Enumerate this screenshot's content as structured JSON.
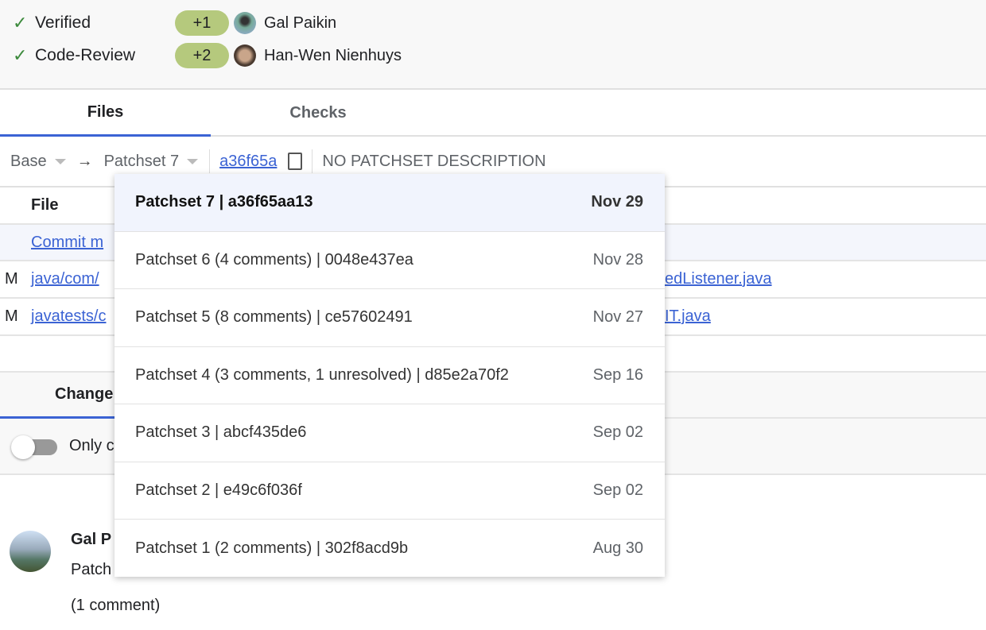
{
  "labels": [
    {
      "name": "Verified",
      "vote": "+1",
      "user": "Gal Paikin"
    },
    {
      "name": "Code-Review",
      "vote": "+2",
      "user": "Han-Wen Nienhuys"
    }
  ],
  "tabs": {
    "files": "Files",
    "checks": "Checks"
  },
  "toolbar": {
    "base": "Base",
    "arrow": "→",
    "patchset": "Patchset 7",
    "commit": "a36f65a",
    "description": "NO PATCHSET DESCRIPTION"
  },
  "files": {
    "header": "File",
    "commit_msg": "Commit m",
    "rows": [
      {
        "status": "M",
        "path_start": "java/com/",
        "path_end": "edListener.java"
      },
      {
        "status": "M",
        "path_start": "javatests/c",
        "path_end": "IT.java"
      }
    ]
  },
  "lower_tab": "Change",
  "toggle_label": "Only c",
  "toggle_on": false,
  "message": {
    "author": "Gal P",
    "text": "Patch",
    "comments": "(1 comment)"
  },
  "dropdown": [
    {
      "label": "Patchset 7 | a36f65aa13",
      "date": "Nov 29",
      "selected": true
    },
    {
      "label": "Patchset 6 (4 comments) | 0048e437ea",
      "date": "Nov 28"
    },
    {
      "label": "Patchset 5 (8 comments) | ce57602491",
      "date": "Nov 27"
    },
    {
      "label": "Patchset 4 (3 comments, 1 unresolved) | d85e2a70f2",
      "date": "Sep 16"
    },
    {
      "label": "Patchset 3 | abcf435de6",
      "date": "Sep 02"
    },
    {
      "label": "Patchset 2 | e49c6f036f",
      "date": "Sep 02"
    },
    {
      "label": "Patchset 1 (2 comments) | 302f8acd9b",
      "date": "Aug 30"
    }
  ],
  "colors": {
    "accent": "#3b63d4",
    "vote": "#b5c97d",
    "selected_bg": "#f1f4fd"
  }
}
